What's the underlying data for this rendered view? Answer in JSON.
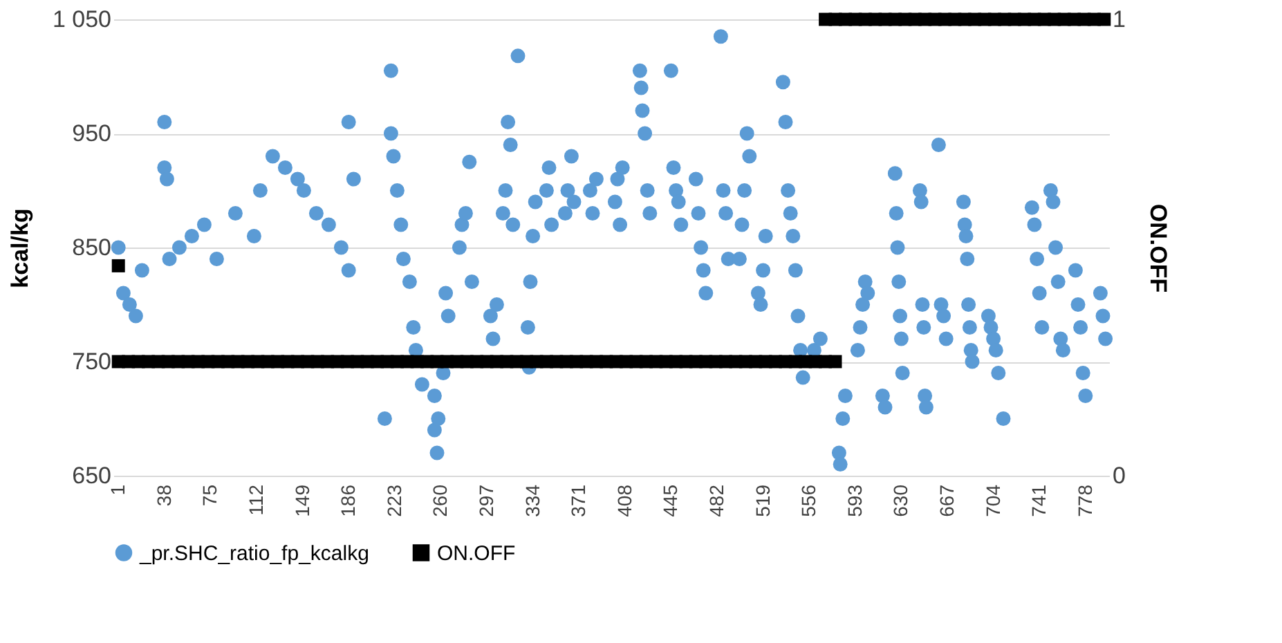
{
  "chart_data": {
    "type": "scatter",
    "xlabel": null,
    "ylabel": "kcal/kg",
    "y2label": "ON.OFF",
    "xlim": [
      -3,
      797
    ],
    "xticks": [
      1,
      38,
      75,
      112,
      149,
      186,
      223,
      260,
      297,
      334,
      371,
      408,
      445,
      482,
      519,
      556,
      593,
      630,
      667,
      704,
      741,
      778
    ],
    "ylim": [
      650,
      1050
    ],
    "yticks": [
      650,
      750,
      850,
      950,
      {
        "value": 1050,
        "label": "1 050"
      }
    ],
    "y2lim": [
      0,
      1
    ],
    "y2ticks": [
      0,
      1
    ],
    "grid": "y",
    "legend": "bottom",
    "series": [
      {
        "name": "_pr.SHC_ratio_fp_kcalkg",
        "color": "#5b9bd5",
        "marker": "circle",
        "x": [
          1,
          5,
          10,
          15,
          20,
          38,
          38,
          40,
          42,
          50,
          60,
          70,
          80,
          95,
          110,
          115,
          125,
          135,
          145,
          150,
          160,
          170,
          180,
          186,
          186,
          190,
          215,
          220,
          220,
          222,
          225,
          228,
          230,
          235,
          238,
          240,
          245,
          255,
          255,
          257,
          258,
          262,
          264,
          266,
          275,
          277,
          280,
          283,
          285,
          300,
          302,
          305,
          310,
          312,
          314,
          316,
          318,
          322,
          330,
          331,
          332,
          334,
          336,
          345,
          347,
          349,
          360,
          362,
          365,
          367,
          380,
          382,
          385,
          400,
          402,
          404,
          406,
          420,
          421,
          422,
          424,
          426,
          428,
          445,
          447,
          449,
          451,
          453,
          465,
          467,
          469,
          471,
          473,
          485,
          487,
          489,
          491,
          500,
          502,
          504,
          506,
          508,
          515,
          517,
          519,
          521,
          535,
          537,
          539,
          541,
          543,
          545,
          547,
          549,
          551,
          560,
          565,
          580,
          581,
          583,
          585,
          595,
          597,
          599,
          601,
          603,
          615,
          617,
          625,
          626,
          627,
          628,
          629,
          630,
          631,
          645,
          646,
          647,
          648,
          649,
          650,
          660,
          662,
          664,
          666,
          680,
          681,
          682,
          683,
          684,
          685,
          686,
          687,
          700,
          702,
          704,
          706,
          708,
          712,
          735,
          737,
          739,
          741,
          743,
          750,
          752,
          754,
          756,
          758,
          760,
          770,
          772,
          774,
          776,
          778,
          790,
          792,
          794
        ],
        "values": [
          850,
          810,
          800,
          790,
          830,
          960,
          920,
          910,
          840,
          850,
          860,
          870,
          840,
          880,
          860,
          900,
          930,
          920,
          910,
          900,
          880,
          870,
          850,
          830,
          960,
          910,
          700,
          1005,
          950,
          930,
          900,
          870,
          840,
          820,
          780,
          760,
          730,
          720,
          690,
          670,
          700,
          740,
          810,
          790,
          850,
          870,
          880,
          925,
          820,
          790,
          770,
          800,
          880,
          900,
          960,
          940,
          870,
          1018,
          780,
          745,
          820,
          860,
          890,
          900,
          920,
          870,
          880,
          900,
          930,
          890,
          900,
          880,
          910,
          890,
          910,
          870,
          920,
          1005,
          990,
          970,
          950,
          900,
          880,
          1005,
          920,
          900,
          890,
          870,
          910,
          880,
          850,
          830,
          810,
          1035,
          900,
          880,
          840,
          840,
          870,
          900,
          950,
          930,
          810,
          800,
          830,
          860,
          995,
          960,
          900,
          880,
          860,
          830,
          790,
          760,
          736,
          760,
          770,
          670,
          660,
          700,
          720,
          760,
          780,
          800,
          820,
          810,
          720,
          710,
          915,
          880,
          850,
          820,
          790,
          770,
          740,
          900,
          890,
          800,
          780,
          720,
          710,
          940,
          800,
          790,
          770,
          890,
          870,
          860,
          840,
          800,
          780,
          760,
          750,
          790,
          780,
          770,
          760,
          740,
          700,
          885,
          870,
          840,
          810,
          780,
          900,
          890,
          850,
          820,
          770,
          760,
          830,
          800,
          780,
          740,
          720,
          810,
          790,
          770
        ]
      },
      {
        "name": "ON.OFF",
        "color": "#000000",
        "marker": "square",
        "axis": "y2",
        "x": [
          1,
          1,
          9,
          17,
          25,
          33,
          41,
          49,
          57,
          65,
          73,
          81,
          89,
          97,
          105,
          113,
          121,
          129,
          137,
          145,
          153,
          161,
          169,
          177,
          185,
          193,
          201,
          209,
          217,
          225,
          233,
          241,
          249,
          257,
          265,
          273,
          281,
          289,
          297,
          305,
          313,
          321,
          329,
          337,
          345,
          353,
          361,
          369,
          377,
          385,
          393,
          401,
          409,
          417,
          425,
          433,
          441,
          449,
          457,
          465,
          473,
          481,
          489,
          497,
          505,
          513,
          521,
          529,
          537,
          545,
          553,
          561,
          569,
          577,
          569,
          577,
          585,
          593,
          601,
          609,
          617,
          625,
          633,
          641,
          649,
          657,
          665,
          673,
          681,
          689,
          697,
          705,
          713,
          721,
          729,
          737,
          745,
          753,
          761,
          769,
          777,
          785,
          793
        ],
        "values": [
          0.46,
          0.25,
          0.25,
          0.25,
          0.25,
          0.25,
          0.25,
          0.25,
          0.25,
          0.25,
          0.25,
          0.25,
          0.25,
          0.25,
          0.25,
          0.25,
          0.25,
          0.25,
          0.25,
          0.25,
          0.25,
          0.25,
          0.25,
          0.25,
          0.25,
          0.25,
          0.25,
          0.25,
          0.25,
          0.25,
          0.25,
          0.25,
          0.25,
          0.25,
          0.25,
          0.25,
          0.25,
          0.25,
          0.25,
          0.25,
          0.25,
          0.25,
          0.25,
          0.25,
          0.25,
          0.25,
          0.25,
          0.25,
          0.25,
          0.25,
          0.25,
          0.25,
          0.25,
          0.25,
          0.25,
          0.25,
          0.25,
          0.25,
          0.25,
          0.25,
          0.25,
          0.25,
          0.25,
          0.25,
          0.25,
          0.25,
          0.25,
          0.25,
          0.25,
          0.25,
          0.25,
          0.25,
          0.25,
          0.25,
          1,
          1,
          1,
          1,
          1,
          1,
          1,
          1,
          1,
          1,
          1,
          1,
          1,
          1,
          1,
          1,
          1,
          1,
          1,
          1,
          1,
          1,
          1,
          1,
          1,
          1,
          1,
          1,
          1
        ]
      }
    ]
  }
}
